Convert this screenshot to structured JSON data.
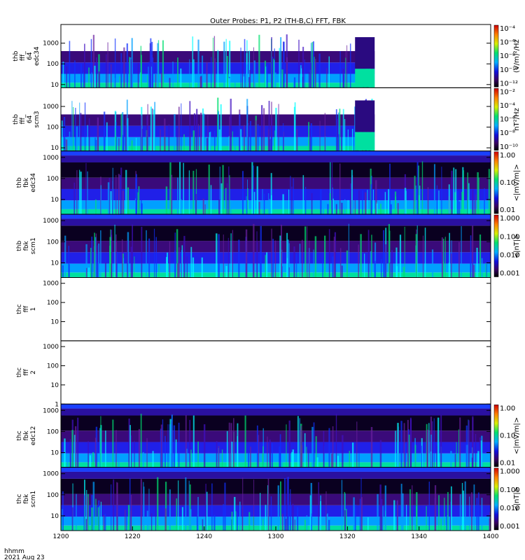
{
  "chart_data": {
    "type": "heatmap",
    "title": "Outer Probes: P1, P2 (TH-B,C) FFT, FBK",
    "x_tick_labels": [
      "1200",
      "1220",
      "1240",
      "1300",
      "1320",
      "1340",
      "1400"
    ],
    "x_axis_label": [
      "hhmm",
      "2021 Aug 23"
    ],
    "x_range_hhmm": [
      "1200",
      "1400"
    ],
    "log_y_ticks": [
      "1",
      "10",
      "100",
      "1000"
    ],
    "panels": [
      {
        "id": "thb-fff-32-edc34",
        "label_lines": [
          "thb",
          "fff_",
          "64",
          "edc34"
        ],
        "y_ticks": [
          "10",
          "100",
          "1000"
        ],
        "y_range": [
          7,
          8000
        ],
        "colorbar": {
          "ticks": [
            "10⁻¹²",
            "10⁻¹⁰",
            "10⁻⁸",
            "10⁻⁶",
            "10⁻⁴"
          ],
          "label": "(V/m)²/Hz"
        },
        "data_end_frac": 0.73
      },
      {
        "id": "thb-fff-32-scm3",
        "label_lines": [
          "thb",
          "fff_",
          "64",
          "scm3"
        ],
        "y_ticks": [
          "10",
          "100",
          "1000"
        ],
        "y_range": [
          7,
          8000
        ],
        "colorbar": {
          "ticks": [
            "10⁻¹⁰",
            "10⁻⁸",
            "10⁻⁶",
            "10⁻⁴",
            "10⁻²"
          ],
          "label": "nT²/Hz"
        },
        "data_end_frac": 0.73
      },
      {
        "id": "thb-fbk-edc34",
        "label_lines": [
          "thb",
          "fbk",
          "edc34"
        ],
        "y_ticks": [
          "10",
          "100",
          "1000"
        ],
        "y_range": [
          2,
          2000
        ],
        "colorbar": {
          "ticks": [
            "0.01",
            "0.10",
            "1.00"
          ],
          "label": "<|mV/m|>"
        },
        "data_end_frac": 1
      },
      {
        "id": "thb-fbk-scm1",
        "label_lines": [
          "thb",
          "fbk",
          "scm1"
        ],
        "y_ticks": [
          "10",
          "100",
          "1000"
        ],
        "y_range": [
          2,
          2000
        ],
        "colorbar": {
          "ticks": [
            "0.001",
            "0.010",
            "0.100",
            "1.000"
          ],
          "label": "<|nT|>"
        },
        "data_end_frac": 1
      },
      {
        "id": "thc-fff-1",
        "label_lines": [
          "thc",
          "fff",
          "1"
        ],
        "y_ticks": [
          "10",
          "100",
          "1000"
        ],
        "y_range": [
          1,
          2000
        ],
        "colorbar": null,
        "data_end_frac": 0
      },
      {
        "id": "thc-fff-2",
        "label_lines": [
          "thc",
          "fff",
          "2"
        ],
        "y_ticks": [
          "1",
          "10",
          "100",
          "1000"
        ],
        "y_range": [
          1,
          2000
        ],
        "colorbar": null,
        "data_end_frac": 0
      },
      {
        "id": "thc-fbk-edc12",
        "label_lines": [
          "thc",
          "fbk",
          "edc12"
        ],
        "y_ticks": [
          "10",
          "100",
          "1000"
        ],
        "y_range": [
          2,
          2000
        ],
        "colorbar": {
          "ticks": [
            "0.01",
            "0.10",
            "1.00"
          ],
          "label": "<|mV/m|>"
        },
        "data_end_frac": 1
      },
      {
        "id": "thc-fbk-scm1",
        "label_lines": [
          "thc",
          "fbk",
          "scm1"
        ],
        "y_ticks": [
          "10",
          "100",
          "1000"
        ],
        "y_range": [
          2,
          2000
        ],
        "colorbar": {
          "ticks": [
            "0.001",
            "0.010",
            "0.100",
            "1.000"
          ],
          "label": "<|nT|>"
        },
        "data_end_frac": 1
      }
    ]
  }
}
